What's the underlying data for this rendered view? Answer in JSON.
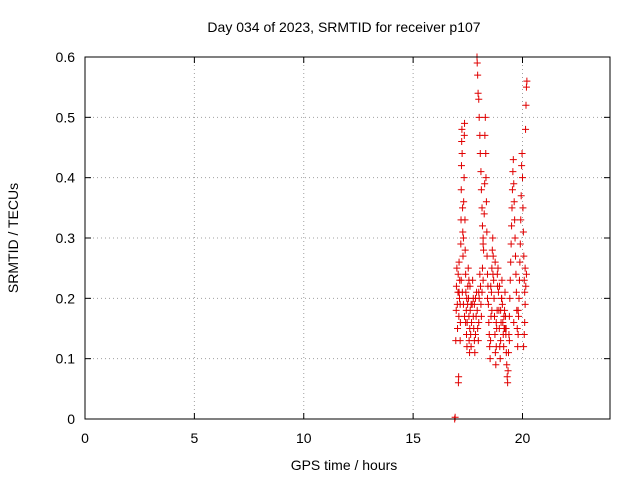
{
  "chart_data": {
    "type": "scatter",
    "title": "Day 034 of 2023, SRMTID for receiver p107",
    "xlabel": "GPS time / hours",
    "ylabel": "SRMTID / TECUs",
    "xlim": [
      0,
      24
    ],
    "ylim": [
      0,
      0.6
    ],
    "xticks": [
      0,
      5,
      10,
      15,
      20
    ],
    "yticks": [
      0,
      0.1,
      0.2,
      0.3,
      0.4,
      0.5,
      0.6
    ],
    "grid": true,
    "marker": "+",
    "series": [
      {
        "name": "SRMTID",
        "color": "#e00000",
        "points": [
          [
            16.9,
            0.0
          ],
          [
            16.92,
            0.003
          ],
          [
            16.95,
            0.13
          ],
          [
            16.97,
            0.18
          ],
          [
            16.98,
            0.22
          ],
          [
            17.0,
            0.25
          ],
          [
            17.02,
            0.19
          ],
          [
            17.03,
            0.15
          ],
          [
            17.05,
            0.21
          ],
          [
            17.06,
            0.24
          ],
          [
            17.07,
            0.06
          ],
          [
            17.08,
            0.07
          ],
          [
            17.09,
            0.17
          ],
          [
            17.1,
            0.26
          ],
          [
            17.12,
            0.2
          ],
          [
            17.13,
            0.23
          ],
          [
            17.15,
            0.13
          ],
          [
            17.16,
            0.16
          ],
          [
            17.18,
            0.29
          ],
          [
            17.19,
            0.33
          ],
          [
            17.2,
            0.38
          ],
          [
            17.21,
            0.42
          ],
          [
            17.22,
            0.46
          ],
          [
            17.23,
            0.48
          ],
          [
            17.24,
            0.44
          ],
          [
            17.26,
            0.35
          ],
          [
            17.27,
            0.31
          ],
          [
            17.28,
            0.27
          ],
          [
            17.3,
            0.3
          ],
          [
            17.31,
            0.36
          ],
          [
            17.33,
            0.4
          ],
          [
            17.34,
            0.47
          ],
          [
            17.35,
            0.49
          ],
          [
            17.37,
            0.33
          ],
          [
            17.38,
            0.28
          ],
          [
            17.4,
            0.24
          ],
          [
            17.41,
            0.21
          ],
          [
            17.43,
            0.18
          ],
          [
            17.44,
            0.14
          ],
          [
            17.46,
            0.12
          ],
          [
            17.47,
            0.16
          ],
          [
            17.49,
            0.19
          ],
          [
            17.5,
            0.22
          ],
          [
            17.52,
            0.25
          ],
          [
            17.53,
            0.2
          ],
          [
            17.55,
            0.17
          ],
          [
            17.56,
            0.13
          ],
          [
            17.58,
            0.11
          ],
          [
            17.59,
            0.15
          ],
          [
            17.61,
            0.18
          ],
          [
            17.63,
            0.14
          ],
          [
            17.65,
            0.12
          ],
          [
            17.67,
            0.16
          ],
          [
            17.7,
            0.19
          ],
          [
            17.72,
            0.23
          ],
          [
            17.75,
            0.2
          ],
          [
            17.77,
            0.15
          ],
          [
            17.8,
            0.13
          ],
          [
            17.82,
            0.11
          ],
          [
            17.85,
            0.14
          ],
          [
            17.88,
            0.17
          ],
          [
            17.9,
            0.21
          ],
          [
            17.93,
            0.18
          ],
          [
            17.95,
            0.15
          ],
          [
            17.98,
            0.13
          ],
          [
            18.0,
            0.16
          ],
          [
            18.02,
            0.2
          ],
          [
            18.05,
            0.24
          ],
          [
            18.08,
            0.22
          ],
          [
            18.1,
            0.19
          ],
          [
            18.12,
            0.17
          ],
          [
            18.15,
            0.21
          ],
          [
            18.17,
            0.25
          ],
          [
            18.2,
            0.29
          ],
          [
            17.92,
            0.6
          ],
          [
            17.93,
            0.59
          ],
          [
            17.95,
            0.57
          ],
          [
            17.97,
            0.54
          ],
          [
            18.0,
            0.53
          ],
          [
            18.02,
            0.5
          ],
          [
            18.05,
            0.47
          ],
          [
            18.07,
            0.44
          ],
          [
            18.1,
            0.41
          ],
          [
            18.12,
            0.38
          ],
          [
            18.15,
            0.35
          ],
          [
            18.17,
            0.32
          ],
          [
            18.2,
            0.3
          ],
          [
            18.22,
            0.28
          ],
          [
            18.25,
            0.34
          ],
          [
            18.27,
            0.39
          ],
          [
            18.28,
            0.47
          ],
          [
            18.3,
            0.5
          ],
          [
            18.32,
            0.44
          ],
          [
            18.33,
            0.4
          ],
          [
            18.35,
            0.36
          ],
          [
            18.37,
            0.31
          ],
          [
            18.38,
            0.27
          ],
          [
            18.4,
            0.24
          ],
          [
            18.42,
            0.22
          ],
          [
            18.44,
            0.19
          ],
          [
            18.46,
            0.16
          ],
          [
            18.48,
            0.14
          ],
          [
            18.5,
            0.12
          ],
          [
            18.52,
            0.1
          ],
          [
            18.54,
            0.13
          ],
          [
            18.56,
            0.17
          ],
          [
            18.58,
            0.21
          ],
          [
            18.6,
            0.25
          ],
          [
            18.62,
            0.28
          ],
          [
            18.64,
            0.3
          ],
          [
            18.66,
            0.27
          ],
          [
            18.68,
            0.23
          ],
          [
            18.7,
            0.2
          ],
          [
            18.72,
            0.17
          ],
          [
            18.74,
            0.14
          ],
          [
            18.76,
            0.11
          ],
          [
            18.78,
            0.09
          ],
          [
            18.8,
            0.12
          ],
          [
            18.82,
            0.15
          ],
          [
            18.84,
            0.18
          ],
          [
            18.86,
            0.22
          ],
          [
            18.88,
            0.25
          ],
          [
            18.9,
            0.21
          ],
          [
            18.92,
            0.18
          ],
          [
            18.94,
            0.15
          ],
          [
            18.96,
            0.12
          ],
          [
            18.98,
            0.1
          ],
          [
            19.0,
            0.13
          ],
          [
            19.02,
            0.16
          ],
          [
            19.04,
            0.2
          ],
          [
            19.06,
            0.23
          ],
          [
            19.08,
            0.19
          ],
          [
            19.1,
            0.16
          ],
          [
            19.12,
            0.14
          ],
          [
            19.14,
            0.12
          ],
          [
            19.16,
            0.15
          ],
          [
            19.18,
            0.18
          ],
          [
            19.2,
            0.21
          ],
          [
            19.22,
            0.17
          ],
          [
            19.24,
            0.14
          ],
          [
            19.26,
            0.11
          ],
          [
            19.28,
            0.09
          ],
          [
            19.3,
            0.07
          ],
          [
            19.32,
            0.06
          ],
          [
            19.34,
            0.08
          ],
          [
            19.36,
            0.11
          ],
          [
            19.38,
            0.14
          ],
          [
            19.4,
            0.17
          ],
          [
            19.42,
            0.2
          ],
          [
            19.44,
            0.23
          ],
          [
            19.46,
            0.26
          ],
          [
            19.48,
            0.29
          ],
          [
            19.5,
            0.32
          ],
          [
            19.52,
            0.35
          ],
          [
            19.54,
            0.38
          ],
          [
            19.56,
            0.41
          ],
          [
            19.58,
            0.43
          ],
          [
            19.6,
            0.39
          ],
          [
            19.62,
            0.36
          ],
          [
            19.64,
            0.33
          ],
          [
            19.66,
            0.3
          ],
          [
            19.68,
            0.27
          ],
          [
            19.7,
            0.24
          ],
          [
            19.72,
            0.21
          ],
          [
            19.74,
            0.18
          ],
          [
            19.76,
            0.15
          ],
          [
            19.78,
            0.12
          ],
          [
            19.8,
            0.14
          ],
          [
            19.82,
            0.17
          ],
          [
            19.84,
            0.2
          ],
          [
            19.86,
            0.23
          ],
          [
            19.88,
            0.26
          ],
          [
            19.9,
            0.29
          ],
          [
            19.92,
            0.33
          ],
          [
            19.94,
            0.37
          ],
          [
            19.96,
            0.42
          ],
          [
            19.98,
            0.44
          ],
          [
            20.0,
            0.4
          ],
          [
            20.02,
            0.35
          ],
          [
            20.04,
            0.31
          ],
          [
            20.06,
            0.27
          ],
          [
            20.08,
            0.23
          ],
          [
            20.1,
            0.21
          ],
          [
            20.12,
            0.25
          ],
          [
            20.14,
            0.48
          ],
          [
            20.16,
            0.52
          ],
          [
            20.18,
            0.55
          ],
          [
            20.2,
            0.56
          ],
          [
            20.05,
            0.12
          ],
          [
            20.08,
            0.14
          ],
          [
            20.1,
            0.16
          ],
          [
            20.12,
            0.19
          ],
          [
            20.15,
            0.22
          ],
          [
            20.18,
            0.24
          ],
          [
            17.1,
            0.21
          ],
          [
            17.2,
            0.23
          ],
          [
            17.3,
            0.19
          ],
          [
            17.4,
            0.16
          ],
          [
            17.6,
            0.22
          ],
          [
            17.8,
            0.19
          ],
          [
            18.0,
            0.21
          ],
          [
            18.2,
            0.23
          ],
          [
            18.4,
            0.2
          ],
          [
            18.6,
            0.18
          ],
          [
            18.8,
            0.16
          ],
          [
            19.0,
            0.18
          ],
          [
            19.2,
            0.15
          ],
          [
            19.4,
            0.13
          ],
          [
            19.6,
            0.16
          ],
          [
            19.8,
            0.18
          ],
          [
            18.55,
            0.22
          ],
          [
            18.65,
            0.24
          ],
          [
            18.75,
            0.26
          ],
          [
            18.85,
            0.24
          ],
          [
            18.95,
            0.22
          ],
          [
            19.05,
            0.2
          ],
          [
            19.15,
            0.17
          ],
          [
            19.25,
            0.15
          ],
          [
            17.15,
            0.19
          ],
          [
            17.25,
            0.21
          ],
          [
            17.35,
            0.17
          ],
          [
            17.45,
            0.2
          ],
          [
            17.55,
            0.23
          ],
          [
            17.65,
            0.19
          ],
          [
            17.75,
            0.17
          ],
          [
            17.85,
            0.2
          ]
        ]
      }
    ]
  }
}
